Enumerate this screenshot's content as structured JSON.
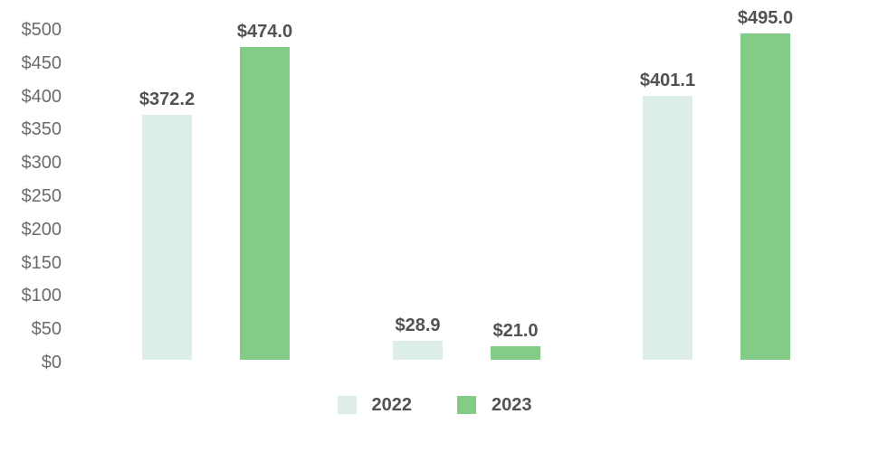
{
  "chart_data": {
    "type": "bar",
    "categories": [
      "",
      "",
      ""
    ],
    "series": [
      {
        "name": "2022",
        "color": "#dceee6",
        "values": [
          372.2,
          28.9,
          401.1
        ],
        "data_labels": [
          "$372.2",
          "$28.9",
          "$401.1"
        ]
      },
      {
        "name": "2023",
        "color": "#83cc88",
        "values": [
          474.0,
          21.0,
          495.0
        ],
        "data_labels": [
          "$474.0",
          "$21.0",
          "$495.0"
        ]
      }
    ],
    "title": "",
    "xlabel": "",
    "ylabel": "",
    "ylim": [
      0,
      500
    ],
    "ytick_step": 50,
    "ytick_labels": [
      "$0",
      "$50",
      "$100",
      "$150",
      "$200",
      "$250",
      "$300",
      "$350",
      "$400",
      "$450",
      "$500"
    ],
    "currency_prefix": "$",
    "grid": false,
    "axis_lines": false,
    "legend_position": "bottom",
    "legend_labels": [
      "2022",
      "2023"
    ],
    "colors": {
      "background": "#ffffff",
      "axis_text": "#6b6b6b",
      "data_label_text": "#515254",
      "legend_text": "#515254"
    }
  }
}
